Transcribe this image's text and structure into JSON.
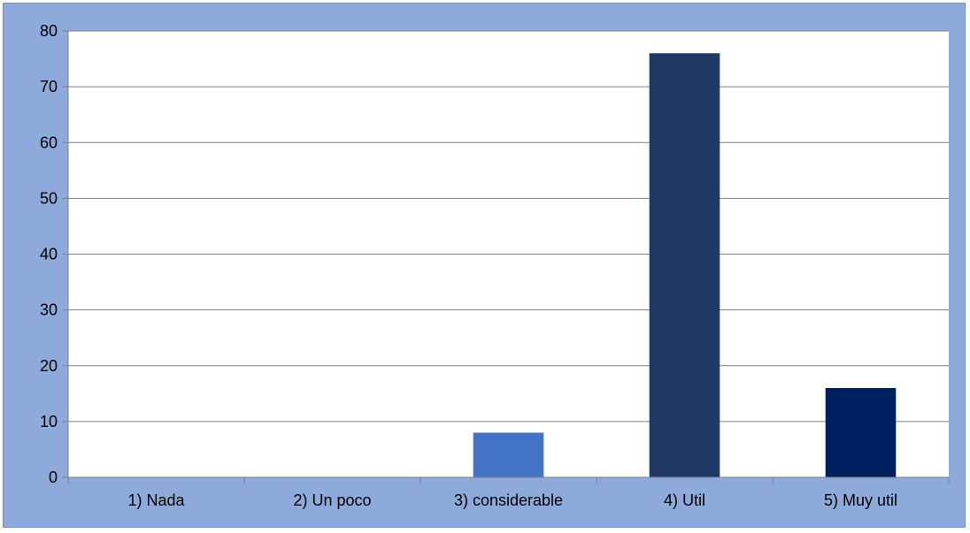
{
  "colors": {
    "background": "#8eaadb",
    "plot_area": "#ffffff",
    "gridline": "#7f7f7f",
    "bar_colors": [
      "#4472c4",
      "#4472c4",
      "#4472c4",
      "#203864",
      "#002060"
    ]
  },
  "chart_data": {
    "type": "bar",
    "categories": [
      "1) Nada",
      "2) Un poco",
      "3) considerable",
      "4) Util",
      "5) Muy util"
    ],
    "values": [
      0,
      0,
      8,
      76,
      16
    ],
    "ylim": [
      0,
      80
    ],
    "yticks": [
      0,
      10,
      20,
      30,
      40,
      50,
      60,
      70,
      80
    ],
    "grid": true,
    "legend": "none"
  }
}
